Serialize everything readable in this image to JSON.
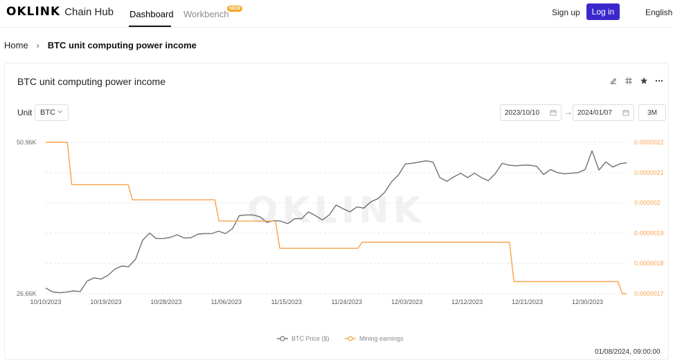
{
  "nav": {
    "logo": "OKLINK",
    "product": "Chain Hub",
    "tabs": [
      {
        "label": "Dashboard",
        "active": true
      },
      {
        "label": "Workbench",
        "active": false,
        "badge": "NEW"
      }
    ],
    "signup": "Sign up",
    "login": "Log in",
    "language": "English"
  },
  "breadcrumb": {
    "home": "Home",
    "separator": "›",
    "current": "BTC unit computing power income"
  },
  "card": {
    "title": "BTC unit computing power income",
    "icons": [
      "edit-icon",
      "grid-icon",
      "star-icon",
      "more-icon"
    ],
    "unit_label": "Unit",
    "unit_value": "BTC",
    "date_from": "2023/10/10",
    "date_to": "2024/01/07",
    "date_arrow": "→",
    "range": "3M",
    "timestamp": "01/08/2024, 09:00:00"
  },
  "colors": {
    "accent": "#3b28cc",
    "price_line": "#6e7079",
    "earnings_line": "#f7a14a",
    "new_badge": "#f5a623"
  },
  "chart_data": {
    "type": "line",
    "title": "",
    "watermark": "OKLINK",
    "x_ticks": [
      "10/10/2023",
      "10/19/2023",
      "10/28/2023",
      "11/06/2023",
      "11/15/2023",
      "11/24/2023",
      "12/03/2023",
      "12/12/2023",
      "12/21/2023",
      "12/30/2023"
    ],
    "y_left": {
      "min_label": "26.66K",
      "max_label": "50.96K",
      "min": 26660,
      "max": 50960
    },
    "y_right": {
      "labels": [
        "0.0000022",
        "0.0000021",
        "0.000002",
        "0.0000019",
        "0.0000018",
        "0.0000017"
      ],
      "min": 1.7e-06,
      "max": 2.2e-06
    },
    "legend_position": "bottom-center",
    "series": [
      {
        "name": "BTC Price ($)",
        "axis": "left",
        "values": [
          27560,
          26950,
          26810,
          26900,
          27100,
          27000,
          28690,
          29200,
          29000,
          29600,
          30600,
          31100,
          31000,
          32200,
          35200,
          36400,
          35500,
          35500,
          35700,
          36100,
          35600,
          35650,
          36200,
          36300,
          36300,
          36700,
          36300,
          37100,
          39200,
          39300,
          39300,
          39000,
          38100,
          38400,
          38300,
          37900,
          38700,
          38700,
          39800,
          39200,
          38500,
          39300,
          40900,
          40300,
          39800,
          40600,
          40400,
          41400,
          41900,
          42900,
          44600,
          45700,
          47500,
          47600,
          47800,
          48000,
          47800,
          45300,
          44700,
          45400,
          46000,
          45300,
          46000,
          45300,
          44800,
          45900,
          47600,
          47300,
          47200,
          47300,
          47300,
          47100,
          45800,
          46600,
          46100,
          45900,
          46000,
          46100,
          46600,
          49600,
          46500,
          47800,
          47000,
          47500,
          47700
        ]
      },
      {
        "name": "Mining earnings",
        "axis": "right",
        "values": [
          2.2e-06,
          2.2e-06,
          2.2e-06,
          2.2e-06,
          2.2e-06,
          2.2e-06,
          2.06e-06,
          2.06e-06,
          2.06e-06,
          2.06e-06,
          2.06e-06,
          2.06e-06,
          2.06e-06,
          2.06e-06,
          2.06e-06,
          2.06e-06,
          2.06e-06,
          2.06e-06,
          2.06e-06,
          2.06e-06,
          2.01e-06,
          2.01e-06,
          2.01e-06,
          2.01e-06,
          2.01e-06,
          2.01e-06,
          2.01e-06,
          2.01e-06,
          2.01e-06,
          2.01e-06,
          2.01e-06,
          2.01e-06,
          2.01e-06,
          2.01e-06,
          2.01e-06,
          2.01e-06,
          2.01e-06,
          2.01e-06,
          2.01e-06,
          2.01e-06,
          1.94e-06,
          1.94e-06,
          1.94e-06,
          1.94e-06,
          1.94e-06,
          1.94e-06,
          1.94e-06,
          1.94e-06,
          1.94e-06,
          1.94e-06,
          1.94e-06,
          1.94e-06,
          1.94e-06,
          1.94e-06,
          1.85e-06,
          1.85e-06,
          1.85e-06,
          1.85e-06,
          1.85e-06,
          1.85e-06,
          1.85e-06,
          1.85e-06,
          1.85e-06,
          1.85e-06,
          1.85e-06,
          1.85e-06,
          1.85e-06,
          1.85e-06,
          1.85e-06,
          1.85e-06,
          1.85e-06,
          1.85e-06,
          1.85e-06,
          1.87e-06,
          1.87e-06,
          1.87e-06,
          1.87e-06,
          1.87e-06,
          1.87e-06,
          1.87e-06,
          1.87e-06,
          1.87e-06,
          1.87e-06,
          1.87e-06,
          1.87e-06,
          1.87e-06,
          1.87e-06,
          1.87e-06,
          1.87e-06,
          1.87e-06,
          1.87e-06,
          1.87e-06,
          1.87e-06,
          1.87e-06,
          1.87e-06,
          1.87e-06,
          1.87e-06,
          1.87e-06,
          1.87e-06,
          1.87e-06,
          1.87e-06,
          1.87e-06,
          1.87e-06,
          1.87e-06,
          1.87e-06,
          1.87e-06,
          1.87e-06,
          1.87e-06,
          1.74e-06,
          1.74e-06,
          1.74e-06,
          1.74e-06,
          1.74e-06,
          1.74e-06,
          1.74e-06,
          1.74e-06,
          1.74e-06,
          1.74e-06,
          1.74e-06,
          1.74e-06,
          1.74e-06,
          1.74e-06,
          1.74e-06,
          1.74e-06,
          1.74e-06,
          1.74e-06,
          1.74e-06,
          1.74e-06,
          1.74e-06,
          1.74e-06,
          1.74e-06,
          1.74e-06,
          1.74e-06,
          1.7e-06,
          1.7e-06
        ]
      }
    ]
  }
}
